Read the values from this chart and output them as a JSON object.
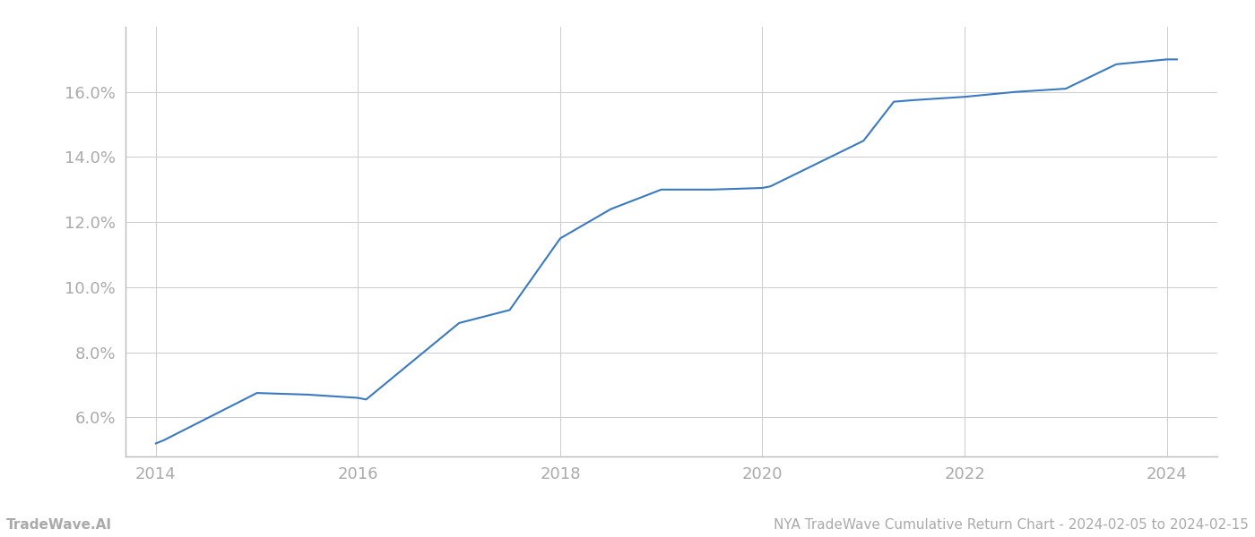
{
  "x_values": [
    2014.0,
    2014.08,
    2015.0,
    2015.5,
    2016.0,
    2016.08,
    2017.0,
    2017.5,
    2018.0,
    2018.5,
    2019.0,
    2019.5,
    2020.0,
    2020.08,
    2021.0,
    2021.3,
    2021.5,
    2022.0,
    2022.5,
    2023.0,
    2023.5,
    2024.0,
    2024.1
  ],
  "y_values": [
    5.2,
    5.3,
    6.75,
    6.7,
    6.6,
    6.55,
    8.9,
    9.3,
    11.5,
    12.4,
    13.0,
    13.0,
    13.05,
    13.1,
    14.5,
    15.7,
    15.75,
    15.85,
    16.0,
    16.1,
    16.85,
    17.0,
    17.0
  ],
  "line_color": "#3a7abf",
  "line_width": 1.5,
  "background_color": "#ffffff",
  "grid_color": "#cccccc",
  "x_ticks": [
    2014,
    2016,
    2018,
    2020,
    2022,
    2024
  ],
  "x_tick_labels": [
    "2014",
    "2016",
    "2018",
    "2020",
    "2022",
    "2024"
  ],
  "y_ticks": [
    6.0,
    8.0,
    10.0,
    12.0,
    14.0,
    16.0
  ],
  "y_tick_labels": [
    "6.0%",
    "8.0%",
    "10.0%",
    "12.0%",
    "14.0%",
    "16.0%"
  ],
  "xlim": [
    2013.7,
    2024.5
  ],
  "ylim": [
    4.8,
    18.0
  ],
  "footer_left": "TradeWave.AI",
  "footer_right": "NYA TradeWave Cumulative Return Chart - 2024-02-05 to 2024-02-15",
  "tick_color": "#aaaaaa",
  "spine_color": "#bbbbbb",
  "footer_color": "#aaaaaa",
  "footer_fontsize": 11
}
